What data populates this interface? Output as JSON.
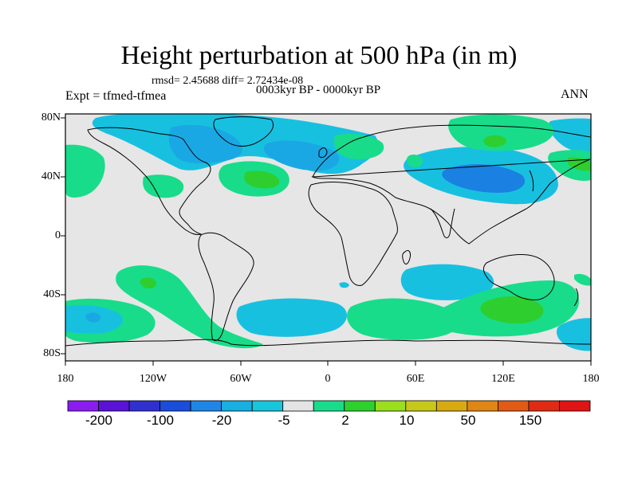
{
  "title": "Height perturbation at 500 hPa (in m)",
  "stats": "rmsd= 2.45688 diff= 2.72434e-08",
  "period": "0003kyr BP - 0000kyr BP",
  "experiment": "Expt = tfmed-tfmea",
  "season": "ANN",
  "lat_labels": [
    "80N",
    "40N",
    "0",
    "40S",
    "80S"
  ],
  "lon_labels": [
    "180",
    "120W",
    "60W",
    "0",
    "60E",
    "120E",
    "180"
  ],
  "colorbar": {
    "labels": [
      "-200",
      "-100",
      "-20",
      "-5",
      "2",
      "10",
      "50",
      "150"
    ],
    "colors": [
      "#8a1cf0",
      "#5a12d6",
      "#3030d0",
      "#1a4ddb",
      "#1f86e6",
      "#18b0e2",
      "#18c5dc",
      "#e4e4e4",
      "#18dc8a",
      "#2ed02e",
      "#9ade1e",
      "#c8c81a",
      "#d8aa12",
      "#e08614",
      "#e25a14",
      "#e02a14",
      "#e01414"
    ]
  },
  "colors": {
    "land_mask": "#e6e6e6",
    "blue_light": "#18c0e0",
    "blue_mid": "#1aa8e4",
    "blue_dark": "#1a80e2",
    "green": "#18dc8a",
    "green_dark": "#2ece2e"
  }
}
